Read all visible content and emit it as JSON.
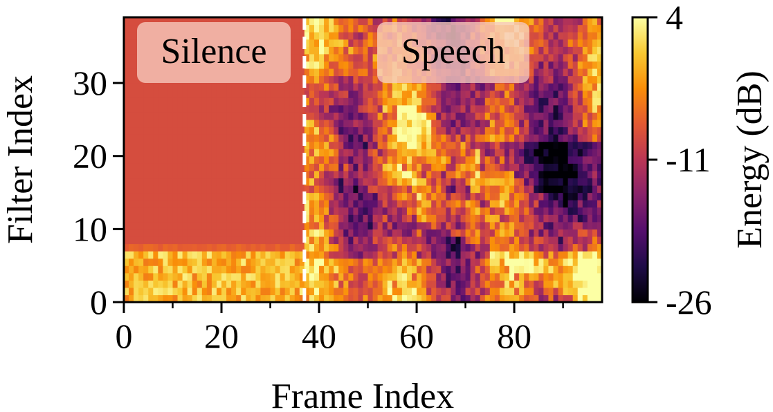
{
  "chart_data": {
    "type": "heatmap",
    "title": "",
    "xlabel": "Frame Index",
    "ylabel": "Filter Index",
    "xlim": [
      0,
      98
    ],
    "ylim": [
      0,
      39
    ],
    "x_ticks": [
      "0",
      "20",
      "40",
      "60",
      "80"
    ],
    "x_tick_values": [
      0,
      20,
      40,
      60,
      80
    ],
    "x_minor_tick_values": [
      10,
      30,
      50,
      70,
      90
    ],
    "y_ticks": [
      "0",
      "10",
      "20",
      "30"
    ],
    "y_tick_values": [
      0,
      10,
      20,
      30
    ],
    "colorbar": {
      "label": "Energy (dB)",
      "min": -26,
      "max": 4,
      "ticks": [
        "4",
        "-11",
        "-26"
      ],
      "tick_values": [
        4,
        -11,
        -26
      ],
      "colormap": "inferno"
    },
    "boundary": {
      "frame": 37,
      "style": "dashed",
      "color": "#ffffff"
    },
    "annotations": [
      "Silence",
      "Speech"
    ],
    "n_frames": 98,
    "n_filters": 39,
    "silence_level_db": -8.5
  }
}
